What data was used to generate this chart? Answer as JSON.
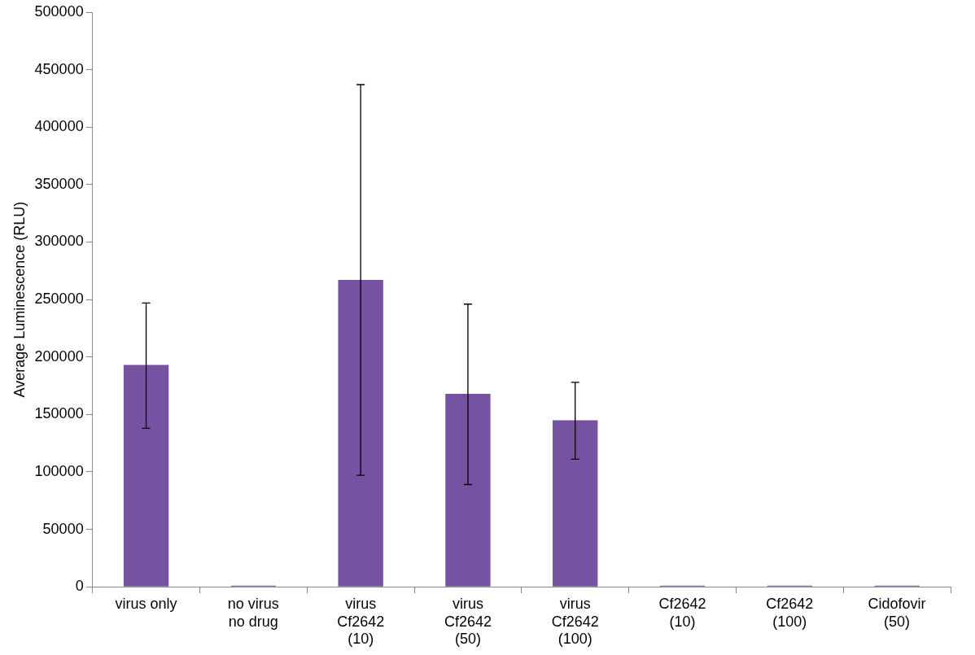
{
  "chart_data": {
    "type": "bar",
    "ylabel": "Average Luminescence (RLU)",
    "categories": [
      "virus only",
      "no virus\nno drug",
      "virus\nCf2642\n(10)",
      "virus\nCf2642\n(50)",
      "virus\nCf2642\n(100)",
      "Cf2642\n(10)",
      "Cf2642\n(100)",
      "Cidofovir\n(50)"
    ],
    "values": [
      193000,
      1000,
      267000,
      168000,
      145000,
      1000,
      1000,
      1000
    ],
    "errors": [
      [
        138000,
        247000
      ],
      null,
      [
        97000,
        437000
      ],
      [
        89000,
        246000
      ],
      [
        111000,
        178000
      ],
      null,
      null,
      null
    ],
    "color": "#7652a3",
    "ylim": [
      0,
      500000
    ],
    "yticks": [
      0,
      50000,
      100000,
      150000,
      200000,
      250000,
      300000,
      350000,
      400000,
      450000,
      500000
    ],
    "grid": false,
    "legend": false
  }
}
